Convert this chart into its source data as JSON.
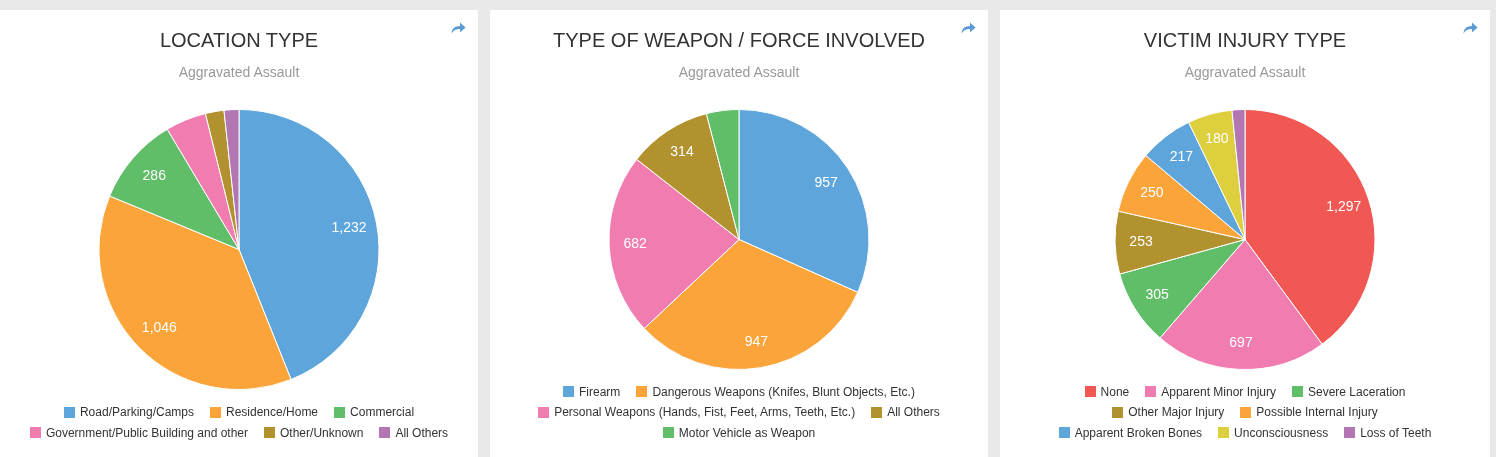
{
  "chart_data": [
    {
      "type": "pie",
      "title": "LOCATION TYPE",
      "subtitle": "Aggravated Assault",
      "categories": [
        "Road/Parking/Camps",
        "Residence/Home",
        "Commercial",
        "Government/Public Building and other",
        "Other/Unknown",
        "All Others"
      ],
      "values": [
        1232,
        1046,
        286,
        132,
        60,
        48
      ],
      "colors": [
        "#5da5da",
        "#faa43a",
        "#60bd68",
        "#f17cb0",
        "#b2912f",
        "#b276b2"
      ],
      "value_labels": [
        "1,232",
        "1,046",
        "286",
        null,
        null,
        null
      ],
      "legend": "bottom"
    },
    {
      "type": "pie",
      "title": "TYPE OF WEAPON / FORCE INVOLVED",
      "subtitle": "Aggravated Assault",
      "categories": [
        "Firearm",
        "Dangerous Weapons (Knifes, Blunt Objects, Etc.)",
        "Personal Weapons (Hands, Fist, Feet, Arms, Teeth, Etc.)",
        "All Others",
        "Motor Vehicle as Weapon"
      ],
      "values": [
        957,
        947,
        682,
        314,
        122
      ],
      "colors": [
        "#5da5da",
        "#faa43a",
        "#f17cb0",
        "#b2912f",
        "#60bd68"
      ],
      "value_labels": [
        "957",
        "947",
        "682",
        "314",
        null
      ],
      "legend": "bottom"
    },
    {
      "type": "pie",
      "title": "VICTIM INJURY TYPE",
      "subtitle": "Aggravated Assault",
      "categories": [
        "None",
        "Apparent Minor Injury",
        "Severe Laceration",
        "Other Major Injury",
        "Possible Internal Injury",
        "Apparent Broken Bones",
        "Unconsciousness",
        "Loss of Teeth"
      ],
      "values": [
        1297,
        697,
        305,
        253,
        250,
        217,
        180,
        52
      ],
      "colors": [
        "#f15854",
        "#f17cb0",
        "#60bd68",
        "#b2912f",
        "#faa43a",
        "#5da5da",
        "#decf3f",
        "#b276b2"
      ],
      "value_labels": [
        "1,297",
        "697",
        "305",
        "253",
        "250",
        "217",
        "180",
        null
      ],
      "legend": "bottom"
    }
  ]
}
